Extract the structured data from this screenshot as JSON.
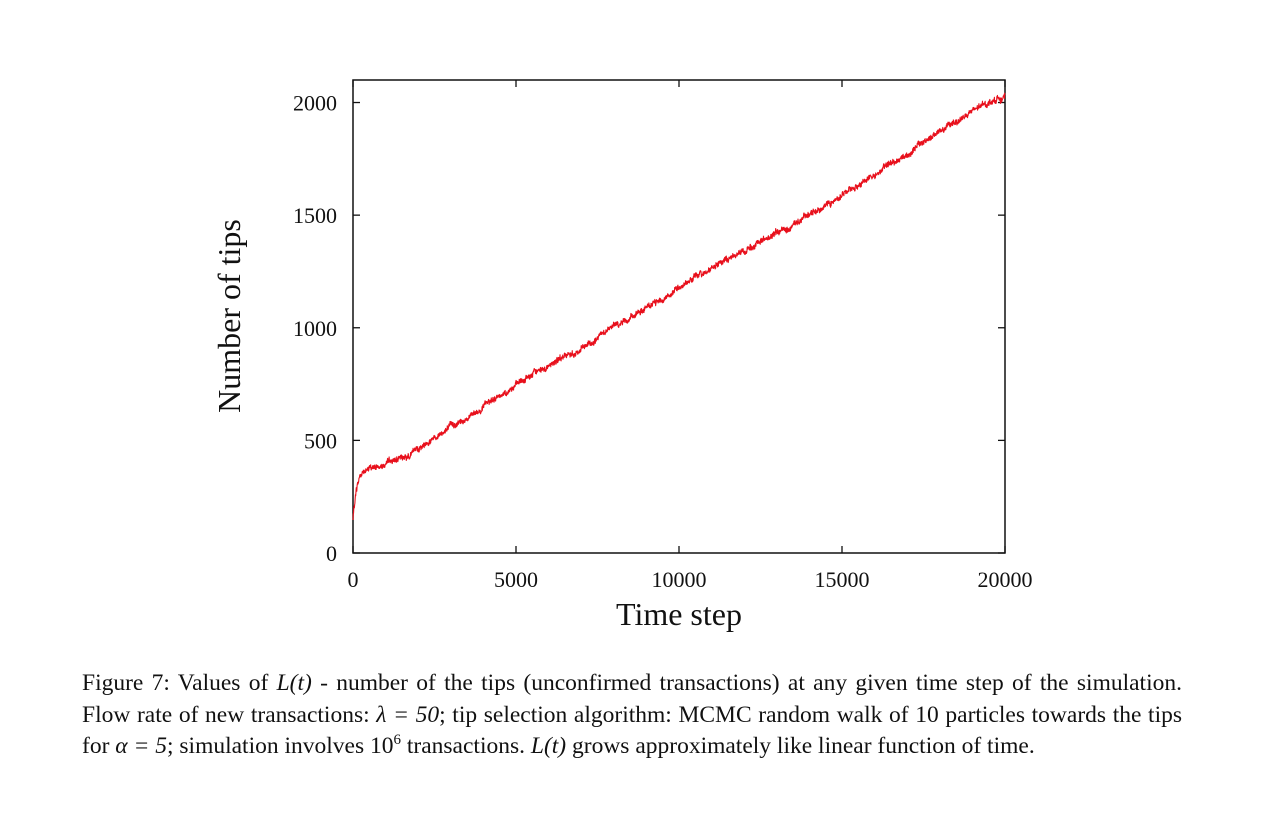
{
  "chart_data": {
    "type": "line",
    "xlabel": "Time step",
    "ylabel": "Number of tips",
    "xlim": [
      0,
      20000
    ],
    "ylim": [
      0,
      2100
    ],
    "xticks": [
      0,
      5000,
      10000,
      15000,
      20000
    ],
    "yticks": [
      0,
      500,
      1000,
      1500,
      2000
    ],
    "xtick_labels": [
      "0",
      "5000",
      "10000",
      "15000",
      "20000"
    ],
    "ytick_labels": [
      "0",
      "500",
      "1000",
      "1500",
      "2000"
    ],
    "grid": false,
    "legend": false,
    "series": [
      {
        "color": "#e8101c",
        "x": [
          0,
          50,
          100,
          200,
          300,
          400,
          500,
          700,
          1000,
          1500,
          2000,
          2500,
          3000,
          3500,
          4000,
          4500,
          5000,
          5500,
          6000,
          6500,
          7000,
          7500,
          8000,
          8500,
          9000,
          9500,
          10000,
          10500,
          11000,
          11500,
          12000,
          12500,
          13000,
          13500,
          14000,
          14500,
          15000,
          15500,
          16000,
          16500,
          17000,
          17500,
          18000,
          18500,
          19000,
          19500,
          20000
        ],
        "y": [
          150,
          220,
          280,
          340,
          360,
          365,
          375,
          380,
          395,
          420,
          460,
          520,
          560,
          600,
          650,
          700,
          745,
          790,
          835,
          870,
          900,
          950,
          1005,
          1045,
          1085,
          1130,
          1180,
          1225,
          1265,
          1305,
          1340,
          1380,
          1420,
          1460,
          1500,
          1545,
          1595,
          1635,
          1680,
          1730,
          1770,
          1825,
          1870,
          1915,
          1960,
          2000,
          2030
        ]
      }
    ]
  },
  "caption": {
    "figure_label": "Figure 7:",
    "text_1": " Values of ",
    "math_Lt_1": "L(t)",
    "text_2": " - number of the tips (unconfirmed transactions) at any given time step of the simulation.  Flow rate of new transactions: ",
    "math_lambda": "λ = 50",
    "text_3": "; tip selection algorithm: MCMC random walk of 10 particles towards the tips for ",
    "math_alpha": "α = 5",
    "text_4": "; simulation involves ",
    "power_base": "10",
    "power_exp": "6",
    "text_5": " transactions.  ",
    "math_Lt_2": "L(t)",
    "text_6": " grows approximately like linear function of time."
  }
}
